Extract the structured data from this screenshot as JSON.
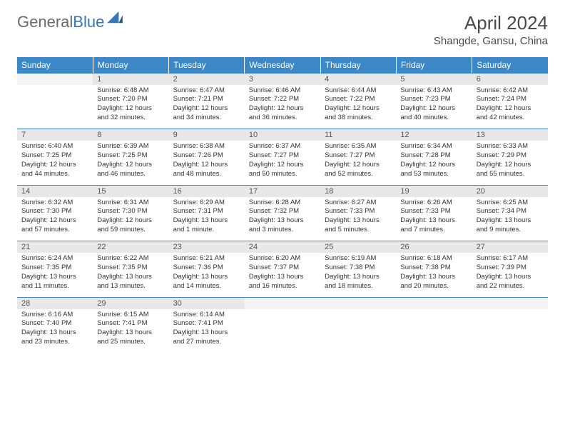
{
  "logo": {
    "text1": "General",
    "text2": "Blue"
  },
  "title": "April 2024",
  "location": "Shangde, Gansu, China",
  "colors": {
    "header_bg": "#3b87c8",
    "header_text": "#ffffff",
    "daynum_bg": "#e8e8e8",
    "empty_bg": "#f4f4f4",
    "border": "#3b87c8",
    "text": "#333333",
    "title_color": "#4a4a4a"
  },
  "dow": [
    "Sunday",
    "Monday",
    "Tuesday",
    "Wednesday",
    "Thursday",
    "Friday",
    "Saturday"
  ],
  "weeks": [
    {
      "nums": [
        "",
        "1",
        "2",
        "3",
        "4",
        "5",
        "6"
      ],
      "cells": [
        null,
        {
          "sr": "Sunrise: 6:48 AM",
          "ss": "Sunset: 7:20 PM",
          "d1": "Daylight: 12 hours",
          "d2": "and 32 minutes."
        },
        {
          "sr": "Sunrise: 6:47 AM",
          "ss": "Sunset: 7:21 PM",
          "d1": "Daylight: 12 hours",
          "d2": "and 34 minutes."
        },
        {
          "sr": "Sunrise: 6:46 AM",
          "ss": "Sunset: 7:22 PM",
          "d1": "Daylight: 12 hours",
          "d2": "and 36 minutes."
        },
        {
          "sr": "Sunrise: 6:44 AM",
          "ss": "Sunset: 7:22 PM",
          "d1": "Daylight: 12 hours",
          "d2": "and 38 minutes."
        },
        {
          "sr": "Sunrise: 6:43 AM",
          "ss": "Sunset: 7:23 PM",
          "d1": "Daylight: 12 hours",
          "d2": "and 40 minutes."
        },
        {
          "sr": "Sunrise: 6:42 AM",
          "ss": "Sunset: 7:24 PM",
          "d1": "Daylight: 12 hours",
          "d2": "and 42 minutes."
        }
      ]
    },
    {
      "nums": [
        "7",
        "8",
        "9",
        "10",
        "11",
        "12",
        "13"
      ],
      "cells": [
        {
          "sr": "Sunrise: 6:40 AM",
          "ss": "Sunset: 7:25 PM",
          "d1": "Daylight: 12 hours",
          "d2": "and 44 minutes."
        },
        {
          "sr": "Sunrise: 6:39 AM",
          "ss": "Sunset: 7:25 PM",
          "d1": "Daylight: 12 hours",
          "d2": "and 46 minutes."
        },
        {
          "sr": "Sunrise: 6:38 AM",
          "ss": "Sunset: 7:26 PM",
          "d1": "Daylight: 12 hours",
          "d2": "and 48 minutes."
        },
        {
          "sr": "Sunrise: 6:37 AM",
          "ss": "Sunset: 7:27 PM",
          "d1": "Daylight: 12 hours",
          "d2": "and 50 minutes."
        },
        {
          "sr": "Sunrise: 6:35 AM",
          "ss": "Sunset: 7:27 PM",
          "d1": "Daylight: 12 hours",
          "d2": "and 52 minutes."
        },
        {
          "sr": "Sunrise: 6:34 AM",
          "ss": "Sunset: 7:28 PM",
          "d1": "Daylight: 12 hours",
          "d2": "and 53 minutes."
        },
        {
          "sr": "Sunrise: 6:33 AM",
          "ss": "Sunset: 7:29 PM",
          "d1": "Daylight: 12 hours",
          "d2": "and 55 minutes."
        }
      ]
    },
    {
      "nums": [
        "14",
        "15",
        "16",
        "17",
        "18",
        "19",
        "20"
      ],
      "cells": [
        {
          "sr": "Sunrise: 6:32 AM",
          "ss": "Sunset: 7:30 PM",
          "d1": "Daylight: 12 hours",
          "d2": "and 57 minutes."
        },
        {
          "sr": "Sunrise: 6:31 AM",
          "ss": "Sunset: 7:30 PM",
          "d1": "Daylight: 12 hours",
          "d2": "and 59 minutes."
        },
        {
          "sr": "Sunrise: 6:29 AM",
          "ss": "Sunset: 7:31 PM",
          "d1": "Daylight: 13 hours",
          "d2": "and 1 minute."
        },
        {
          "sr": "Sunrise: 6:28 AM",
          "ss": "Sunset: 7:32 PM",
          "d1": "Daylight: 13 hours",
          "d2": "and 3 minutes."
        },
        {
          "sr": "Sunrise: 6:27 AM",
          "ss": "Sunset: 7:33 PM",
          "d1": "Daylight: 13 hours",
          "d2": "and 5 minutes."
        },
        {
          "sr": "Sunrise: 6:26 AM",
          "ss": "Sunset: 7:33 PM",
          "d1": "Daylight: 13 hours",
          "d2": "and 7 minutes."
        },
        {
          "sr": "Sunrise: 6:25 AM",
          "ss": "Sunset: 7:34 PM",
          "d1": "Daylight: 13 hours",
          "d2": "and 9 minutes."
        }
      ]
    },
    {
      "nums": [
        "21",
        "22",
        "23",
        "24",
        "25",
        "26",
        "27"
      ],
      "cells": [
        {
          "sr": "Sunrise: 6:24 AM",
          "ss": "Sunset: 7:35 PM",
          "d1": "Daylight: 13 hours",
          "d2": "and 11 minutes."
        },
        {
          "sr": "Sunrise: 6:22 AM",
          "ss": "Sunset: 7:35 PM",
          "d1": "Daylight: 13 hours",
          "d2": "and 13 minutes."
        },
        {
          "sr": "Sunrise: 6:21 AM",
          "ss": "Sunset: 7:36 PM",
          "d1": "Daylight: 13 hours",
          "d2": "and 14 minutes."
        },
        {
          "sr": "Sunrise: 6:20 AM",
          "ss": "Sunset: 7:37 PM",
          "d1": "Daylight: 13 hours",
          "d2": "and 16 minutes."
        },
        {
          "sr": "Sunrise: 6:19 AM",
          "ss": "Sunset: 7:38 PM",
          "d1": "Daylight: 13 hours",
          "d2": "and 18 minutes."
        },
        {
          "sr": "Sunrise: 6:18 AM",
          "ss": "Sunset: 7:38 PM",
          "d1": "Daylight: 13 hours",
          "d2": "and 20 minutes."
        },
        {
          "sr": "Sunrise: 6:17 AM",
          "ss": "Sunset: 7:39 PM",
          "d1": "Daylight: 13 hours",
          "d2": "and 22 minutes."
        }
      ]
    },
    {
      "nums": [
        "28",
        "29",
        "30",
        "",
        "",
        "",
        ""
      ],
      "cells": [
        {
          "sr": "Sunrise: 6:16 AM",
          "ss": "Sunset: 7:40 PM",
          "d1": "Daylight: 13 hours",
          "d2": "and 23 minutes."
        },
        {
          "sr": "Sunrise: 6:15 AM",
          "ss": "Sunset: 7:41 PM",
          "d1": "Daylight: 13 hours",
          "d2": "and 25 minutes."
        },
        {
          "sr": "Sunrise: 6:14 AM",
          "ss": "Sunset: 7:41 PM",
          "d1": "Daylight: 13 hours",
          "d2": "and 27 minutes."
        },
        null,
        null,
        null,
        null
      ]
    }
  ]
}
